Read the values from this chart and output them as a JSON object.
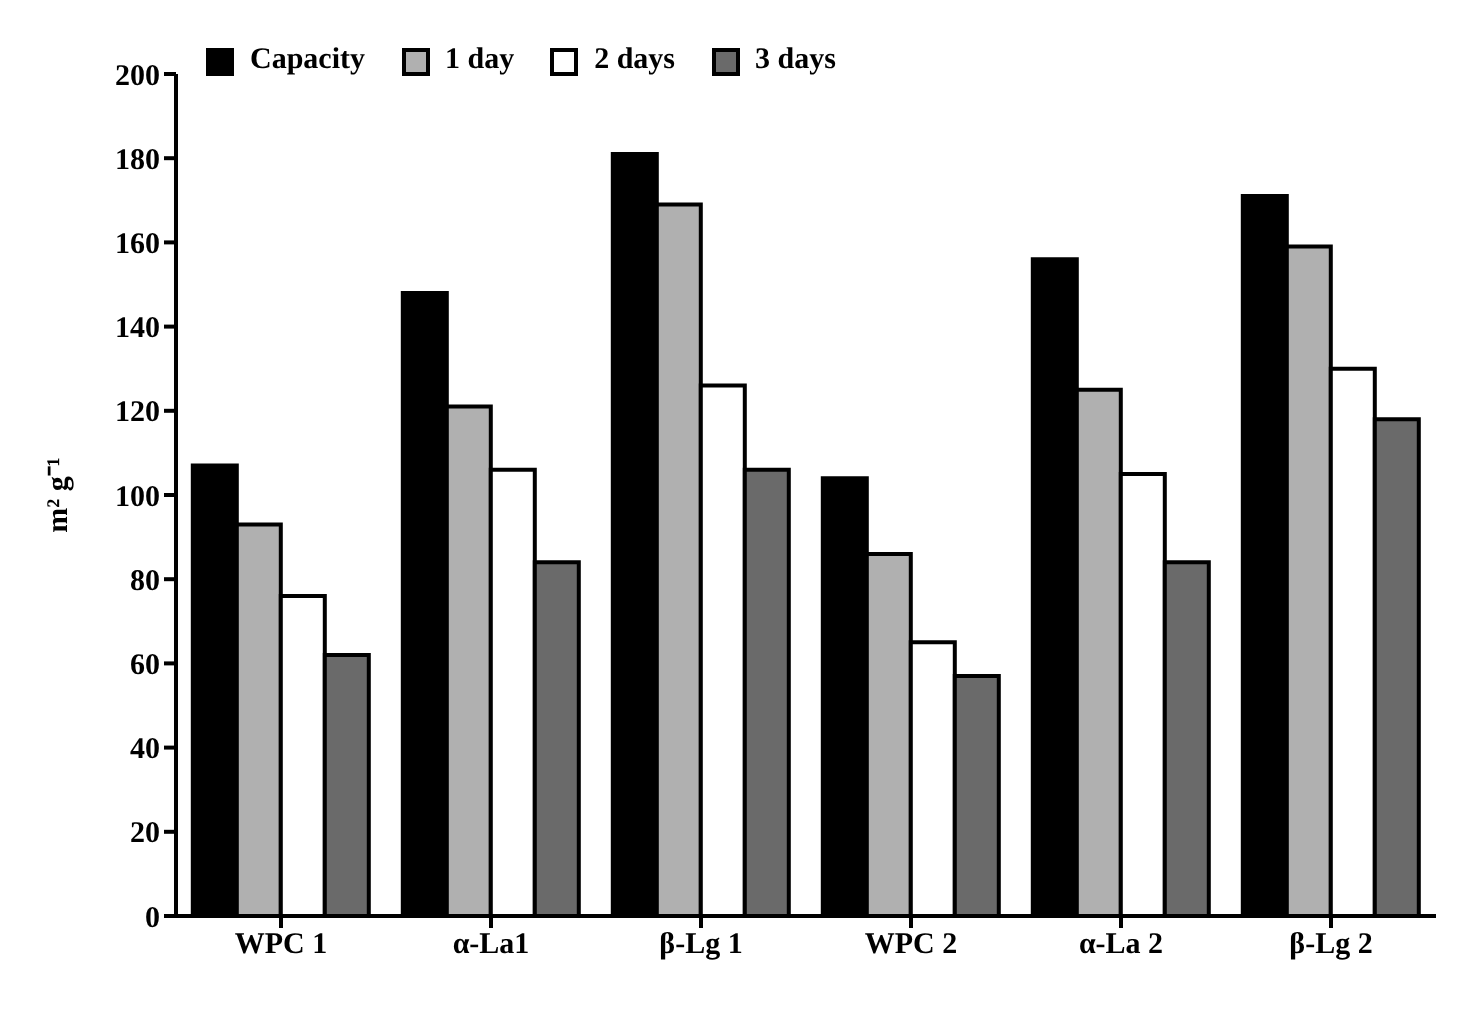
{
  "chart_data": {
    "type": "bar",
    "ylabel": "m² g⁻¹",
    "categories": [
      "WPC 1",
      "α-La1",
      "β-Lg 1",
      "WPC 2",
      "α-La 2",
      "β-Lg 2"
    ],
    "series": [
      {
        "name": "Capacity",
        "color": "#000000",
        "values": [
          107,
          148,
          181,
          104,
          156,
          171
        ]
      },
      {
        "name": "1 day",
        "color": "#b0b0b0",
        "values": [
          93,
          121,
          169,
          86,
          125,
          159
        ]
      },
      {
        "name": "2 days",
        "color": "#ffffff",
        "values": [
          76,
          106,
          126,
          65,
          105,
          130
        ]
      },
      {
        "name": "3 days",
        "color": "#6a6a6a",
        "values": [
          62,
          84,
          106,
          57,
          84,
          118
        ]
      }
    ],
    "ylim": [
      0,
      200
    ],
    "yticks": [
      0,
      20,
      40,
      60,
      80,
      100,
      120,
      140,
      160,
      180,
      200
    ],
    "grid": false,
    "legend": "top left"
  }
}
